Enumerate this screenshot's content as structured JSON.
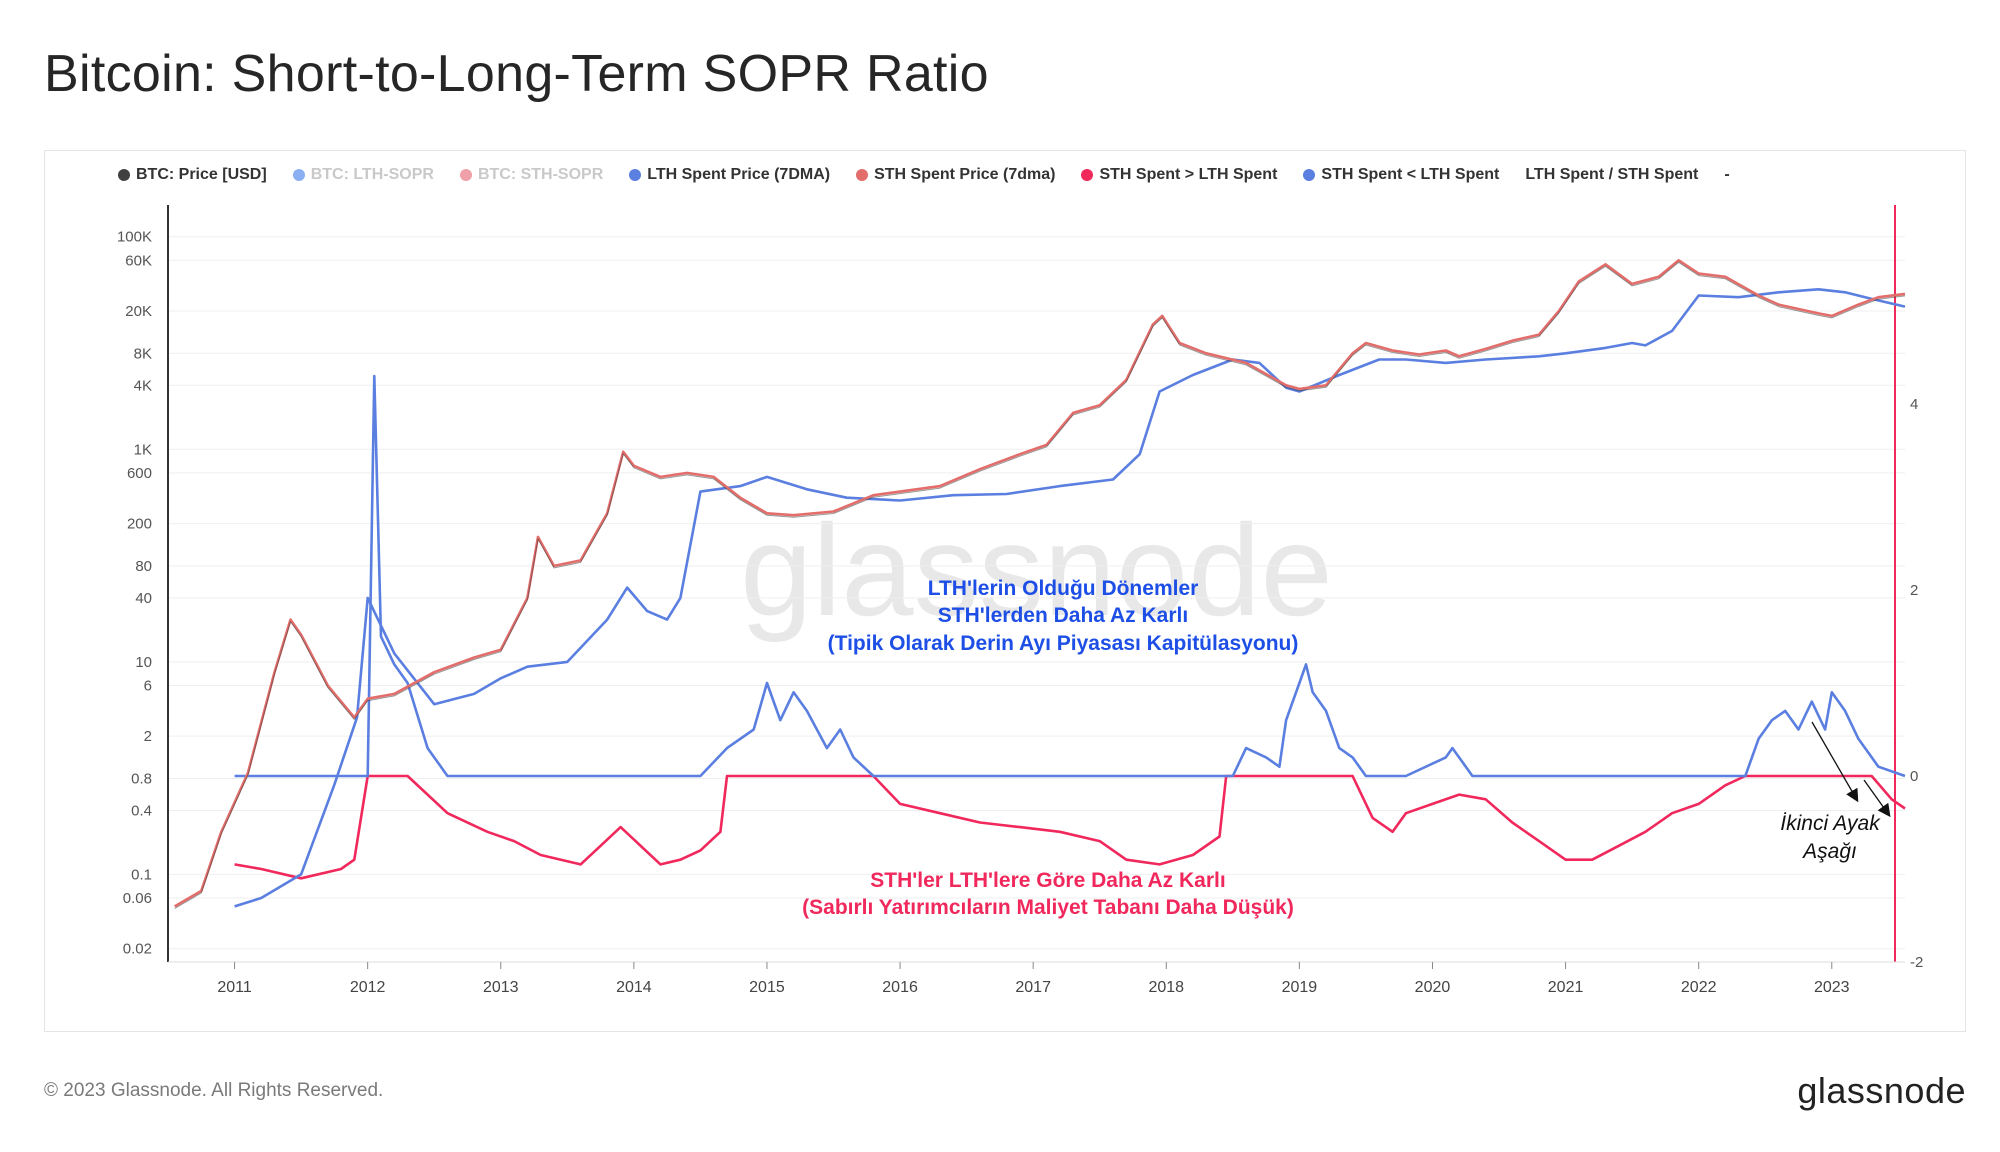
{
  "title": "Bitcoin: Short-to-Long-Term SOPR Ratio",
  "footer": {
    "copyright": "© 2023 Glassnode. All Rights Reserved.",
    "brand": "glassnode"
  },
  "watermark": "glassnode",
  "colors": {
    "price": "#404040",
    "lth_sopr_faded": "#8ab0f2",
    "sth_sopr_faded": "#f0a0a8",
    "lth_spent_price": "#5b7fe0",
    "sth_spent_price": "#e36d6a",
    "sth_gt_lth": "#f0285c",
    "sth_lt_lth": "#5b7fe0",
    "annotation_blue": "#1d4fe6",
    "annotation_red": "#f0285c",
    "axis_right": "#f0285c"
  },
  "legend": [
    {
      "label": "BTC: Price [USD]",
      "color": "#404040",
      "faded": false
    },
    {
      "label": "BTC: LTH-SOPR",
      "color": "#8ab0f2",
      "faded": true
    },
    {
      "label": "BTC: STH-SOPR",
      "color": "#f0a0a8",
      "faded": true
    },
    {
      "label": "LTH Spent Price (7DMA)",
      "color": "#5b7fe0",
      "faded": false
    },
    {
      "label": "STH Spent Price (7dma)",
      "color": "#e36d6a",
      "faded": false
    },
    {
      "label": "STH Spent > LTH Spent",
      "color": "#f0285c",
      "faded": false
    },
    {
      "label": "STH Spent < LTH Spent",
      "color": "#5b7fe0",
      "faded": false
    },
    {
      "label": "LTH Spent / STH Spent",
      "color": null,
      "faded": false
    },
    {
      "label": "-",
      "color": null,
      "faded": false
    }
  ],
  "annotations": {
    "blue": [
      "LTH'lerin Olduğu Dönemler",
      "STH'lerden Daha Az Karlı",
      "(Tipik Olarak Derin Ayı Piyasası Kapitülasyonu)"
    ],
    "red": [
      "STH'ler LTH'lere Göre Daha Az Karlı",
      "(Sabırlı Yatırımcıların Maliyet Tabanı Daha Düşük)"
    ],
    "second_leg": [
      "İkinci Ayak",
      "Aşağı"
    ]
  },
  "chart_data": {
    "type": "line",
    "x_ticks": [
      "2011",
      "2012",
      "2013",
      "2014",
      "2015",
      "2016",
      "2017",
      "2018",
      "2019",
      "2020",
      "2021",
      "2022",
      "2023"
    ],
    "x_range": [
      2010.5,
      2023.55
    ],
    "y_left": {
      "scale": "log",
      "ticks": [
        0.02,
        0.06,
        0.1,
        0.4,
        0.8,
        2,
        6,
        10,
        40,
        80,
        200,
        600,
        1000,
        4000,
        8000,
        20000,
        60000,
        100000
      ],
      "tick_labels": [
        "0.02",
        "0.06",
        "0.1",
        "0.4",
        "0.8",
        "2",
        "6",
        "10",
        "40",
        "80",
        "200",
        "600",
        "1K",
        "4K",
        "8K",
        "20K",
        "60K",
        "100K"
      ],
      "range": [
        0.015,
        150000
      ]
    },
    "y_right": {
      "scale": "linear",
      "ticks": [
        -2,
        0,
        2,
        4
      ],
      "tick_labels": [
        "-2",
        "0",
        "2",
        "4"
      ],
      "range": [
        -2,
        6
      ]
    },
    "series": [
      {
        "name": "STH Spent Price (7dma)",
        "axis": "left",
        "x": [
          2010.55,
          2010.75,
          2010.9,
          2011.1,
          2011.3,
          2011.42,
          2011.5,
          2011.7,
          2011.9,
          2012.0,
          2012.2,
          2012.5,
          2012.8,
          2013.0,
          2013.2,
          2013.28,
          2013.4,
          2013.6,
          2013.8,
          2013.92,
          2014.0,
          2014.2,
          2014.4,
          2014.6,
          2014.8,
          2015.0,
          2015.2,
          2015.5,
          2015.8,
          2016.0,
          2016.3,
          2016.6,
          2016.9,
          2017.1,
          2017.3,
          2017.5,
          2017.7,
          2017.9,
          2017.97,
          2018.1,
          2018.3,
          2018.6,
          2018.9,
          2019.0,
          2019.2,
          2019.4,
          2019.5,
          2019.7,
          2019.9,
          2020.1,
          2020.2,
          2020.4,
          2020.6,
          2020.8,
          2020.95,
          2021.1,
          2021.3,
          2021.5,
          2021.7,
          2021.85,
          2022.0,
          2022.2,
          2022.45,
          2022.6,
          2022.9,
          2023.0,
          2023.2,
          2023.35,
          2023.55
        ],
        "values": [
          0.05,
          0.07,
          0.25,
          0.9,
          8,
          25,
          18,
          6,
          3,
          4.5,
          5,
          8,
          11,
          13,
          40,
          150,
          80,
          90,
          250,
          950,
          700,
          550,
          600,
          550,
          350,
          250,
          240,
          260,
          370,
          400,
          450,
          650,
          900,
          1100,
          2200,
          2600,
          4500,
          15000,
          18000,
          10000,
          8000,
          6500,
          4000,
          3700,
          4000,
          8000,
          10000,
          8500,
          7800,
          8500,
          7500,
          8800,
          10500,
          12000,
          20000,
          38000,
          55000,
          36000,
          42000,
          60000,
          45000,
          42000,
          28000,
          23000,
          19000,
          18000,
          23000,
          27000,
          29000
        ]
      },
      {
        "name": "LTH Spent Price (7DMA)",
        "axis": "left",
        "x": [
          2011.0,
          2011.2,
          2011.5,
          2011.75,
          2011.92,
          2012.0,
          2012.2,
          2012.5,
          2012.8,
          2013.0,
          2013.2,
          2013.5,
          2013.8,
          2013.95,
          2014.1,
          2014.25,
          2014.35,
          2014.5,
          2014.8,
          2015.0,
          2015.3,
          2015.6,
          2016.0,
          2016.4,
          2016.8,
          2017.2,
          2017.6,
          2017.8,
          2017.95,
          2018.2,
          2018.5,
          2018.7,
          2018.9,
          2019.0,
          2019.3,
          2019.6,
          2019.8,
          2020.1,
          2020.4,
          2020.8,
          2021.0,
          2021.3,
          2021.5,
          2021.6,
          2021.8,
          2022.0,
          2022.3,
          2022.6,
          2022.9,
          2023.1,
          2023.3,
          2023.55
        ],
        "values": [
          0.05,
          0.06,
          0.1,
          0.7,
          3,
          40,
          12,
          4,
          5,
          7,
          9,
          10,
          25,
          50,
          30,
          25,
          40,
          400,
          450,
          550,
          420,
          350,
          330,
          370,
          380,
          450,
          520,
          900,
          3500,
          5000,
          7000,
          6500,
          3800,
          3500,
          5000,
          7000,
          7000,
          6500,
          7000,
          7500,
          8000,
          9000,
          10000,
          9500,
          13000,
          28000,
          27000,
          30000,
          32000,
          30000,
          26000,
          22000
        ]
      },
      {
        "name": "STH Spent > LTH Spent",
        "axis": "right",
        "x": [
          2011.0,
          2011.2,
          2011.5,
          2011.8,
          2011.9,
          2012.0,
          2012.2,
          2012.3,
          2012.6,
          2012.9,
          2013.1,
          2013.3,
          2013.6,
          2013.75,
          2013.9,
          2014.2,
          2014.35,
          2014.5,
          2014.65,
          2014.7,
          2015.0,
          2015.3,
          2015.6,
          2015.8,
          2016.0,
          2016.3,
          2016.6,
          2016.9,
          2017.2,
          2017.5,
          2017.7,
          2017.95,
          2018.2,
          2018.4,
          2018.45,
          2018.6,
          2018.8,
          2019.0,
          2019.3,
          2019.4,
          2019.55,
          2019.7,
          2019.8,
          2020.0,
          2020.2,
          2020.4,
          2020.6,
          2020.8,
          2021.0,
          2021.2,
          2021.4,
          2021.6,
          2021.8,
          2022.0,
          2022.2,
          2022.35,
          2022.45,
          2022.6,
          2022.9,
          2023.1,
          2023.3,
          2023.45,
          2023.55
        ],
        "values": [
          -0.95,
          -1.0,
          -1.1,
          -1.0,
          -0.9,
          0,
          0,
          0,
          -0.4,
          -0.6,
          -0.7,
          -0.85,
          -0.95,
          -0.75,
          -0.55,
          -0.95,
          -0.9,
          -0.8,
          -0.6,
          0,
          0,
          0,
          0,
          0,
          -0.3,
          -0.4,
          -0.5,
          -0.55,
          -0.6,
          -0.7,
          -0.9,
          -0.95,
          -0.85,
          -0.65,
          0,
          0,
          0,
          0,
          0,
          0,
          -0.45,
          -0.6,
          -0.4,
          -0.3,
          -0.2,
          -0.25,
          -0.5,
          -0.7,
          -0.9,
          -0.9,
          -0.75,
          -0.6,
          -0.4,
          -0.3,
          -0.1,
          0,
          0,
          0,
          0,
          0,
          0,
          -0.25,
          -0.35
        ]
      },
      {
        "name": "STH Spent < LTH Spent",
        "axis": "right",
        "x": [
          2011.0,
          2011.5,
          2011.9,
          2012.0,
          2012.05,
          2012.1,
          2012.2,
          2012.3,
          2012.45,
          2012.6,
          2014.5,
          2014.7,
          2014.9,
          2015.0,
          2015.1,
          2015.2,
          2015.3,
          2015.45,
          2015.55,
          2015.65,
          2015.8,
          2015.85,
          2018.5,
          2018.6,
          2018.75,
          2018.85,
          2018.9,
          2019.0,
          2019.05,
          2019.1,
          2019.2,
          2019.3,
          2019.4,
          2019.5,
          2019.8,
          2020.1,
          2020.15,
          2020.25,
          2020.3,
          2022.35,
          2022.45,
          2022.55,
          2022.65,
          2022.75,
          2022.85,
          2022.95,
          2023.0,
          2023.1,
          2023.2,
          2023.35,
          2023.55
        ],
        "values": [
          0,
          0,
          0,
          0,
          4.3,
          1.5,
          1.2,
          1.0,
          0.3,
          0,
          0,
          0.3,
          0.5,
          1.0,
          0.6,
          0.9,
          0.7,
          0.3,
          0.5,
          0.2,
          0,
          0,
          0,
          0.3,
          0.2,
          0.1,
          0.6,
          1.0,
          1.2,
          0.9,
          0.7,
          0.3,
          0.2,
          0,
          0,
          0.2,
          0.3,
          0.1,
          0,
          0,
          0.4,
          0.6,
          0.7,
          0.5,
          0.8,
          0.5,
          0.9,
          0.7,
          0.4,
          0.1,
          0
        ]
      }
    ]
  }
}
